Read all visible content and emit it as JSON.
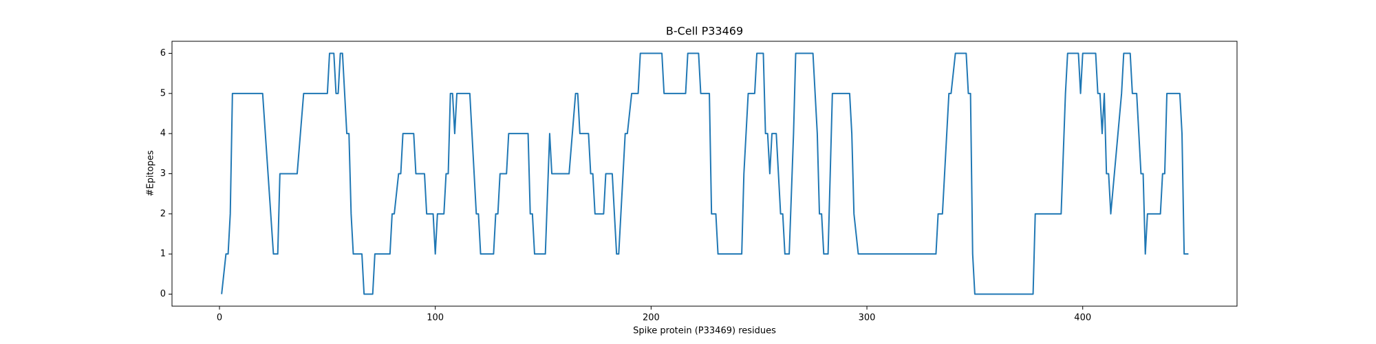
{
  "chart_data": {
    "type": "line",
    "title": "B-Cell P33469",
    "x_label": "Spike protein (P33469) residues",
    "y_label": "#Epitopes",
    "x": [
      1,
      3,
      4,
      5,
      6,
      20,
      25,
      27,
      28,
      36,
      39,
      50,
      51,
      53,
      54,
      55,
      56,
      57,
      59,
      60,
      61,
      62,
      66,
      67,
      71,
      72,
      79,
      80,
      81,
      83,
      84,
      85,
      90,
      91,
      95,
      96,
      99,
      100,
      101,
      104,
      105,
      106,
      107,
      108,
      109,
      110,
      116,
      119,
      120,
      121,
      127,
      128,
      129,
      130,
      133,
      134,
      143,
      144,
      145,
      146,
      151,
      153,
      154,
      162,
      165,
      166,
      167,
      171,
      172,
      173,
      174,
      178,
      179,
      182,
      184,
      185,
      187,
      188,
      189,
      191,
      194,
      195,
      205,
      206,
      216,
      217,
      222,
      223,
      227,
      228,
      230,
      231,
      242,
      243,
      245,
      248,
      249,
      252,
      253,
      254,
      255,
      256,
      258,
      260,
      261,
      262,
      264,
      266,
      267,
      275,
      277,
      278,
      279,
      280,
      282,
      284,
      292,
      293,
      294,
      296,
      332,
      333,
      335,
      337,
      338,
      339,
      341,
      346,
      347,
      348,
      349,
      350,
      377,
      378,
      390,
      392,
      393,
      398,
      399,
      400,
      406,
      407,
      408,
      409,
      410,
      411,
      412,
      413,
      418,
      419,
      422,
      423,
      425,
      427,
      428,
      429,
      430,
      436,
      437,
      438,
      439,
      445,
      446,
      447,
      449
    ],
    "values": [
      0,
      1,
      1,
      2,
      5,
      5,
      1,
      1,
      3,
      3,
      5,
      5,
      6,
      6,
      5,
      5,
      6,
      6,
      4,
      4,
      2,
      1,
      1,
      0,
      0,
      1,
      1,
      2,
      2,
      3,
      3,
      4,
      4,
      3,
      3,
      2,
      2,
      1,
      2,
      2,
      3,
      3,
      5,
      5,
      4,
      5,
      5,
      2,
      2,
      1,
      1,
      2,
      2,
      3,
      3,
      4,
      4,
      2,
      2,
      1,
      1,
      4,
      3,
      3,
      5,
      5,
      4,
      4,
      3,
      3,
      2,
      2,
      3,
      3,
      1,
      1,
      3,
      4,
      4,
      5,
      5,
      6,
      6,
      5,
      5,
      6,
      6,
      5,
      5,
      2,
      2,
      1,
      1,
      3,
      5,
      5,
      6,
      6,
      4,
      4,
      3,
      4,
      4,
      2,
      2,
      1,
      1,
      4,
      6,
      6,
      4,
      2,
      2,
      1,
      1,
      5,
      5,
      4,
      2,
      1,
      1,
      2,
      2,
      4,
      5,
      5,
      6,
      6,
      5,
      5,
      1,
      0,
      0,
      2,
      2,
      5,
      6,
      6,
      5,
      6,
      6,
      5,
      5,
      4,
      5,
      3,
      3,
      2,
      5,
      6,
      6,
      5,
      5,
      3,
      3,
      1,
      2,
      2,
      3,
      3,
      5,
      5,
      4,
      1,
      1
    ],
    "color": "#1f77b4",
    "xlim": [
      -22,
      471.5
    ],
    "xticks": [
      0,
      100,
      200,
      300,
      400
    ],
    "ylim": [
      -0.3,
      6.3
    ],
    "yticks": [
      0,
      1,
      2,
      3,
      4,
      5,
      6
    ]
  }
}
